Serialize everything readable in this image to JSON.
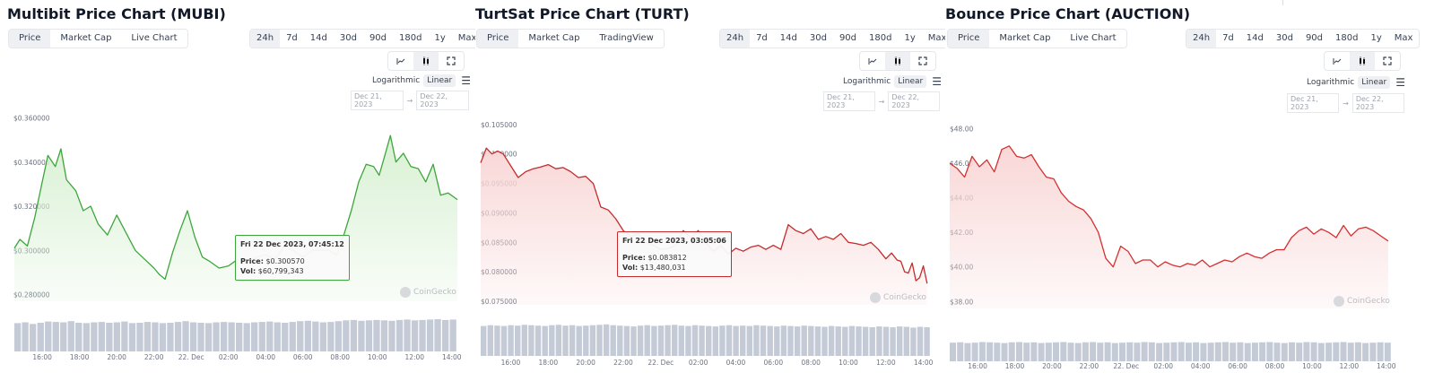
{
  "ui": {
    "ranges": [
      "24h",
      "7d",
      "14d",
      "30d",
      "90d",
      "180d",
      "1y",
      "Max"
    ],
    "active_range": "24h",
    "logarithmic_label": "Logarithmic",
    "linear_label": "Linear",
    "date_from": "Dec 21, 2023",
    "date_to": "Dec 22, 2023",
    "arrow": "→",
    "watermark": "CoinGecko"
  },
  "panels": [
    {
      "title": "Multibit Price Chart (MUBI)",
      "tabs": [
        "Price",
        "Market Cap",
        "Live Chart"
      ],
      "tooltip": {
        "date": "Fri 22 Dec 2023, 07:45:12",
        "price_label": "Price:",
        "price": "$0.300570",
        "vol_label": "Vol:",
        "vol": "$60,799,343"
      }
    },
    {
      "title": "TurtSat Price Chart (TURT)",
      "tabs": [
        "Price",
        "Market Cap",
        "TradingView"
      ],
      "tooltip": {
        "date": "Fri 22 Dec 2023, 03:05:06",
        "price_label": "Price:",
        "price": "$0.083812",
        "vol_label": "Vol:",
        "vol": "$13,480,031"
      }
    },
    {
      "title": "Bounce Price Chart (AUCTION)",
      "tabs": [
        "Price",
        "Market Cap",
        "Live Chart"
      ],
      "tooltip": null
    }
  ],
  "chart_data": [
    {
      "type": "line",
      "title": "Multibit Price Chart (MUBI)",
      "color": "#3ca63c",
      "fill": "#d8f1d3",
      "ylim": [
        0.277,
        0.361
      ],
      "yticks": [
        0.28,
        0.3,
        0.32,
        0.34,
        0.36
      ],
      "ytick_labels": [
        "$0.280000",
        "$0.300000",
        "$0.320000",
        "$0.340000",
        "$0.360000"
      ],
      "xlim": [
        14.5,
        38.3
      ],
      "x_tick_values": [
        16,
        18,
        20,
        22,
        24,
        26,
        28,
        30,
        32,
        34,
        36,
        38
      ],
      "x_tick_labels": [
        "16:00",
        "18:00",
        "20:00",
        "22:00",
        "22. Dec",
        "02:00",
        "04:00",
        "06:00",
        "08:00",
        "10:00",
        "12:00",
        "14:00"
      ],
      "x": [
        14.5,
        14.8,
        15.2,
        15.6,
        16.0,
        16.3,
        16.7,
        17.0,
        17.3,
        17.8,
        18.2,
        18.6,
        19.0,
        19.5,
        20.0,
        20.5,
        21.0,
        21.5,
        22.0,
        22.3,
        22.6,
        23.0,
        23.4,
        23.8,
        24.2,
        24.6,
        25.0,
        25.5,
        26.0,
        26.5,
        27.0,
        27.5,
        28.0,
        28.5,
        29.0,
        29.5,
        30.0,
        30.5,
        31.0,
        31.4,
        31.8,
        32.2,
        32.6,
        33.0,
        33.4,
        33.8,
        34.1,
        34.4,
        34.7,
        35.0,
        35.4,
        35.8,
        36.2,
        36.6,
        37.0,
        37.4,
        37.8,
        38.3
      ],
      "y": [
        0.301,
        0.305,
        0.302,
        0.315,
        0.331,
        0.343,
        0.338,
        0.346,
        0.332,
        0.327,
        0.318,
        0.32,
        0.312,
        0.307,
        0.316,
        0.308,
        0.3,
        0.296,
        0.292,
        0.289,
        0.287,
        0.299,
        0.309,
        0.318,
        0.306,
        0.297,
        0.295,
        0.292,
        0.293,
        0.296,
        0.294,
        0.297,
        0.298,
        0.296,
        0.302,
        0.3,
        0.297,
        0.3,
        0.3,
        0.3,
        0.298,
        0.307,
        0.318,
        0.331,
        0.339,
        0.338,
        0.334,
        0.343,
        0.352,
        0.34,
        0.344,
        0.338,
        0.337,
        0.331,
        0.339,
        0.325,
        0.326,
        0.323
      ],
      "volume": [
        0.72,
        0.74,
        0.7,
        0.73,
        0.76,
        0.75,
        0.74,
        0.77,
        0.73,
        0.72,
        0.74,
        0.75,
        0.73,
        0.74,
        0.76,
        0.72,
        0.73,
        0.75,
        0.74,
        0.72,
        0.73,
        0.75,
        0.77,
        0.74,
        0.73,
        0.72,
        0.74,
        0.75,
        0.74,
        0.73,
        0.72,
        0.74,
        0.75,
        0.76,
        0.74,
        0.73,
        0.75,
        0.77,
        0.78,
        0.76,
        0.74,
        0.75,
        0.77,
        0.79,
        0.8,
        0.78,
        0.79,
        0.8,
        0.79,
        0.78,
        0.8,
        0.81,
        0.79,
        0.8,
        0.81,
        0.82,
        0.8,
        0.81
      ]
    },
    {
      "type": "line",
      "title": "TurtSat Price Chart (TURT)",
      "color": "#c62a2a",
      "fill": "#f9d7d7",
      "ylim": [
        0.0744,
        0.1062
      ],
      "yticks": [
        0.075,
        0.08,
        0.085,
        0.09,
        0.095,
        0.1,
        0.105
      ],
      "ytick_labels": [
        "$0.075000",
        "$0.080000",
        "$0.085000",
        "$0.090000",
        "$0.095000",
        "$0.100000",
        "$0.105000"
      ],
      "xlim": [
        14.4,
        38.4
      ],
      "x_tick_values": [
        16,
        18,
        20,
        22,
        24,
        26,
        28,
        30,
        32,
        34,
        36,
        38
      ],
      "x_tick_labels": [
        "16:00",
        "18:00",
        "20:00",
        "22:00",
        "22. Dec",
        "02:00",
        "04:00",
        "06:00",
        "08:00",
        "10:00",
        "12:00",
        "14:00"
      ],
      "x": [
        14.4,
        14.7,
        15.0,
        15.3,
        15.6,
        16.0,
        16.4,
        16.8,
        17.2,
        17.6,
        18.0,
        18.4,
        18.8,
        19.2,
        19.6,
        20.0,
        20.4,
        20.8,
        21.2,
        21.6,
        22.0,
        22.4,
        22.8,
        23.2,
        23.6,
        24.0,
        24.4,
        24.8,
        25.2,
        25.6,
        26.0,
        26.4,
        26.8,
        27.2,
        27.6,
        28.0,
        28.4,
        28.8,
        29.2,
        29.6,
        30.0,
        30.4,
        30.8,
        31.2,
        31.6,
        32.0,
        32.4,
        32.8,
        33.2,
        33.6,
        34.0,
        34.4,
        34.8,
        35.2,
        35.6,
        36.0,
        36.3,
        36.6,
        36.8,
        37.0,
        37.2,
        37.4,
        37.6,
        37.8,
        38.0,
        38.2
      ],
      "y": [
        0.0985,
        0.101,
        0.1,
        0.1005,
        0.1,
        0.098,
        0.096,
        0.097,
        0.0975,
        0.0978,
        0.0982,
        0.0975,
        0.0977,
        0.097,
        0.096,
        0.0962,
        0.095,
        0.091,
        0.0905,
        0.089,
        0.087,
        0.086,
        0.0865,
        0.085,
        0.0845,
        0.0838,
        0.084,
        0.0845,
        0.087,
        0.0858,
        0.087,
        0.085,
        0.0835,
        0.0845,
        0.083,
        0.084,
        0.0835,
        0.0842,
        0.0845,
        0.0838,
        0.0845,
        0.0838,
        0.088,
        0.087,
        0.0865,
        0.0873,
        0.0855,
        0.086,
        0.0855,
        0.0865,
        0.085,
        0.0848,
        0.0845,
        0.085,
        0.0838,
        0.0822,
        0.0832,
        0.082,
        0.0818,
        0.08,
        0.0798,
        0.0815,
        0.0785,
        0.079,
        0.081,
        0.078
      ],
      "volume": [
        0.74,
        0.76,
        0.75,
        0.74,
        0.76,
        0.75,
        0.77,
        0.76,
        0.75,
        0.74,
        0.76,
        0.77,
        0.75,
        0.76,
        0.74,
        0.75,
        0.76,
        0.77,
        0.78,
        0.76,
        0.75,
        0.74,
        0.73,
        0.75,
        0.76,
        0.74,
        0.75,
        0.76,
        0.77,
        0.75,
        0.74,
        0.76,
        0.75,
        0.74,
        0.73,
        0.75,
        0.76,
        0.74,
        0.75,
        0.74,
        0.76,
        0.75,
        0.74,
        0.73,
        0.75,
        0.74,
        0.73,
        0.75,
        0.74,
        0.73,
        0.72,
        0.74,
        0.73,
        0.72,
        0.74,
        0.73,
        0.72,
        0.71,
        0.73,
        0.72,
        0.71,
        0.73,
        0.72,
        0.7,
        0.72,
        0.71
      ]
    },
    {
      "type": "line",
      "title": "Bounce Price Chart (AUCTION)",
      "color": "#d43030",
      "fill": "#f9d7d7",
      "ylim": [
        37.6,
        48.6
      ],
      "yticks": [
        38,
        40,
        42,
        44,
        46,
        48
      ],
      "ytick_labels": [
        "$38.00",
        "$40.00",
        "$42.00",
        "$44.00",
        "$46.00",
        "$48.00"
      ],
      "xlim": [
        14.5,
        38.3
      ],
      "x_tick_values": [
        16,
        18,
        20,
        22,
        24,
        26,
        28,
        30,
        32,
        34,
        36,
        38
      ],
      "x_tick_labels": [
        "16:00",
        "18:00",
        "20:00",
        "22:00",
        "22. Dec",
        "02:00",
        "04:00",
        "06:00",
        "08:00",
        "10:00",
        "12:00",
        "14:00"
      ],
      "x": [
        14.5,
        14.9,
        15.3,
        15.7,
        16.1,
        16.5,
        16.9,
        17.3,
        17.7,
        18.1,
        18.5,
        18.9,
        19.3,
        19.7,
        20.1,
        20.5,
        20.9,
        21.3,
        21.7,
        22.1,
        22.5,
        22.9,
        23.3,
        23.7,
        24.1,
        24.5,
        24.9,
        25.3,
        25.7,
        26.1,
        26.5,
        26.9,
        27.3,
        27.7,
        28.1,
        28.5,
        28.9,
        29.3,
        29.7,
        30.1,
        30.5,
        30.9,
        31.3,
        31.7,
        32.1,
        32.5,
        32.9,
        33.3,
        33.7,
        34.1,
        34.5,
        34.9,
        35.3,
        35.7,
        36.1,
        36.5,
        36.9,
        37.3,
        37.7,
        38.1
      ],
      "y": [
        46.0,
        45.7,
        45.2,
        46.4,
        45.8,
        46.2,
        45.5,
        46.8,
        47.0,
        46.4,
        46.3,
        46.5,
        45.8,
        45.2,
        45.1,
        44.3,
        43.8,
        43.5,
        43.3,
        42.8,
        42.0,
        40.5,
        40.0,
        41.2,
        40.9,
        40.2,
        40.4,
        40.4,
        40.0,
        40.3,
        40.1,
        40.0,
        40.2,
        40.1,
        40.4,
        40.0,
        40.2,
        40.4,
        40.3,
        40.6,
        40.8,
        40.6,
        40.5,
        40.8,
        41.0,
        41.0,
        41.7,
        42.1,
        42.3,
        41.9,
        42.2,
        42.0,
        41.7,
        42.4,
        41.8,
        42.2,
        42.3,
        42.1,
        41.8,
        41.5
      ],
      "volume": [
        0.55,
        0.56,
        0.54,
        0.55,
        0.57,
        0.56,
        0.55,
        0.54,
        0.56,
        0.57,
        0.55,
        0.56,
        0.54,
        0.55,
        0.56,
        0.57,
        0.55,
        0.54,
        0.56,
        0.57,
        0.55,
        0.56,
        0.54,
        0.55,
        0.56,
        0.55,
        0.57,
        0.56,
        0.54,
        0.55,
        0.56,
        0.57,
        0.55,
        0.56,
        0.54,
        0.55,
        0.56,
        0.57,
        0.55,
        0.56,
        0.54,
        0.55,
        0.56,
        0.57,
        0.55,
        0.54,
        0.56,
        0.55,
        0.57,
        0.56,
        0.54,
        0.55,
        0.56,
        0.57,
        0.55,
        0.56,
        0.54,
        0.55,
        0.56,
        0.55
      ]
    }
  ]
}
